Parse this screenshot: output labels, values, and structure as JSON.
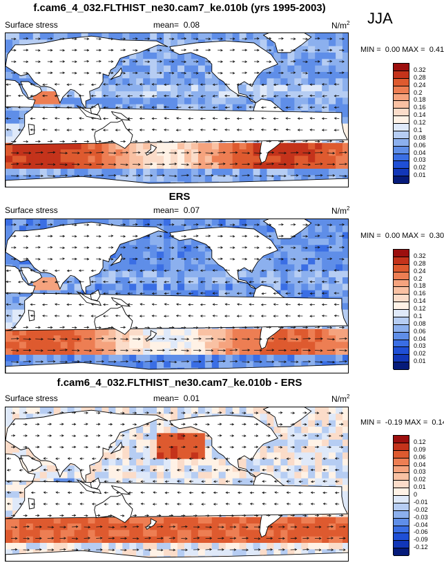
{
  "season": "JJA",
  "panels": [
    {
      "title": "f.cam6_4_032.FLTHIST_ne30.cam7_ke.010b (yrs 1995-2003)",
      "variable": "Surface stress",
      "mean_label": "mean=",
      "mean": "0.08",
      "units_base": "N/m",
      "units_exp": "2",
      "min_label": "MIN =",
      "min": "0.00",
      "max_label": "MAX =",
      "max": "0.41",
      "colorbar": [
        "0.32",
        "0.28",
        "0.24",
        "0.2",
        "0.18",
        "0.16",
        "0.14",
        "0.12",
        "0.1",
        "0.08",
        "0.06",
        "0.04",
        "0.03",
        "0.02",
        "0.01"
      ],
      "colors": [
        "#9c0f0e",
        "#c4331b",
        "#de5a2f",
        "#ed7e53",
        "#f5a37e",
        "#f9c1a3",
        "#fbdcc9",
        "#fff2e6",
        "#dfe9f9",
        "#b6cdf3",
        "#8cb0ee",
        "#5f8ee8",
        "#3a6ee4",
        "#1f4fd6",
        "#1237b8",
        "#061b7a"
      ]
    },
    {
      "title": "ERS",
      "variable": "Surface stress",
      "mean_label": "mean=",
      "mean": "0.07",
      "units_base": "N/m",
      "units_exp": "2",
      "min_label": "MIN =",
      "min": "0.00",
      "max_label": "MAX =",
      "max": "0.30",
      "colorbar": [
        "0.32",
        "0.28",
        "0.24",
        "0.2",
        "0.18",
        "0.16",
        "0.14",
        "0.12",
        "0.1",
        "0.08",
        "0.06",
        "0.04",
        "0.03",
        "0.02",
        "0.01"
      ],
      "colors": [
        "#9c0f0e",
        "#c4331b",
        "#de5a2f",
        "#ed7e53",
        "#f5a37e",
        "#f9c1a3",
        "#fbdcc9",
        "#fff2e6",
        "#dfe9f9",
        "#b6cdf3",
        "#8cb0ee",
        "#5f8ee8",
        "#3a6ee4",
        "#1f4fd6",
        "#1237b8",
        "#061b7a"
      ]
    },
    {
      "title": "f.cam6_4_032.FLTHIST_ne30.cam7_ke.010b - ERS",
      "variable": "Surface stress",
      "mean_label": "mean=",
      "mean": "0.01",
      "units_base": "N/m",
      "units_exp": "2",
      "min_label": "MIN =",
      "min": "-0.19",
      "max_label": "MAX =",
      "max": "0.14",
      "colorbar": [
        "0.12",
        "0.09",
        "0.06",
        "0.04",
        "0.03",
        "0.02",
        "0.01",
        "0",
        "-0.01",
        "-0.02",
        "-0.03",
        "-0.04",
        "-0.06",
        "-0.09",
        "-0.12"
      ],
      "colors": [
        "#9c0f0e",
        "#c4331b",
        "#de5a2f",
        "#ed7e53",
        "#f5a37e",
        "#f9c1a3",
        "#fbdcc9",
        "#fff2e6",
        "#dfe9f9",
        "#b6cdf3",
        "#8cb0ee",
        "#5f8ee8",
        "#3a6ee4",
        "#1f4fd6",
        "#1237b8",
        "#061b7a"
      ]
    }
  ],
  "chart_data": [
    {
      "type": "heatmap",
      "title": "f.cam6_4_032.FLTHIST_ne30.cam7_ke.010b (yrs 1995-2003)",
      "subtitle": "Surface stress",
      "mean": 0.08,
      "min": 0.0,
      "max": 0.41,
      "levels": [
        0.01,
        0.02,
        0.03,
        0.04,
        0.06,
        0.08,
        0.1,
        0.12,
        0.14,
        0.16,
        0.18,
        0.2,
        0.24,
        0.28,
        0.32
      ]
    },
    {
      "type": "heatmap",
      "title": "ERS",
      "subtitle": "Surface stress",
      "mean": 0.07,
      "min": 0.0,
      "max": 0.3,
      "levels": [
        0.01,
        0.02,
        0.03,
        0.04,
        0.06,
        0.08,
        0.1,
        0.12,
        0.14,
        0.16,
        0.18,
        0.2,
        0.24,
        0.28,
        0.32
      ]
    },
    {
      "type": "heatmap",
      "title": "f.cam6_4_032.FLTHIST_ne30.cam7_ke.010b - ERS",
      "subtitle": "Surface stress",
      "mean": 0.01,
      "min": -0.19,
      "max": 0.14,
      "levels": [
        -0.12,
        -0.09,
        -0.06,
        -0.04,
        -0.03,
        -0.02,
        -0.01,
        0,
        0.01,
        0.02,
        0.03,
        0.04,
        0.06,
        0.09,
        0.12
      ]
    }
  ]
}
